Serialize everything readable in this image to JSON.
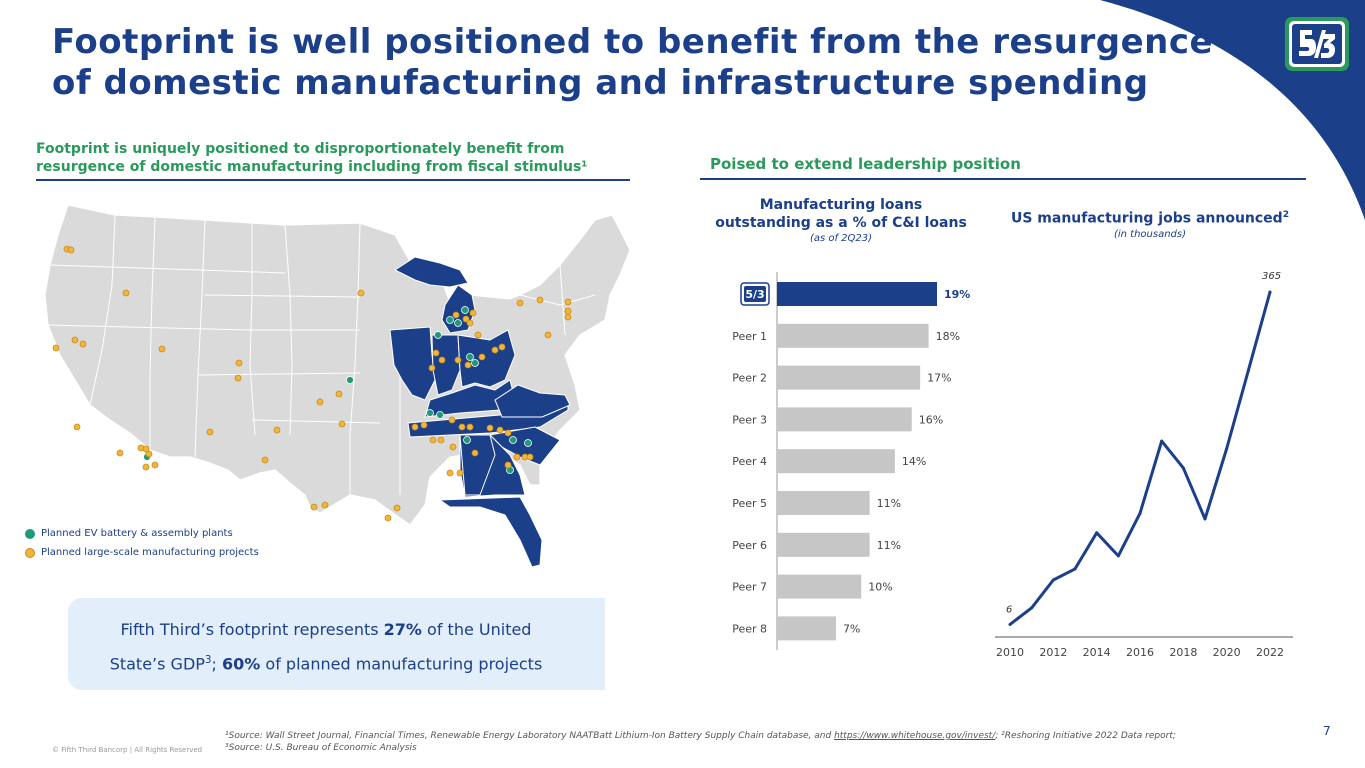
{
  "header": {
    "title_line1": "Footprint is well positioned to benefit from the resurgence",
    "title_line2": "of domestic manufacturing and infrastructure spending",
    "logo_alt": "Fifth Third Bank logo"
  },
  "left": {
    "heading_line1": "Footprint is uniquely positioned to disproportionately benefit from",
    "heading_line2": "resurgence of domestic manufacturing including from fiscal stimulus¹",
    "legend": {
      "ev": "Planned EV battery & assembly plants",
      "mfg": "Planned large-scale manufacturing projects"
    },
    "callout": {
      "line1_a": "Fifth Third’s footprint represents ",
      "line1_b": "27%",
      "line1_c": " of the United",
      "line2_a": "State’s GDP",
      "line2_sup": "3",
      "line2_b": "; ",
      "line2_c": "60%",
      "line2_d": " of planned manufacturing projects"
    }
  },
  "right": {
    "heading": "Poised to extend leadership position"
  },
  "colors": {
    "brand_blue": "#1c3f8a",
    "accent_green": "#2a9a5c",
    "ev_dot": "#1f9a78",
    "mfg_dot": "#f2b53b",
    "bar_gray": "#c6c6c6",
    "map_gray": "#dadada"
  },
  "chart_data": [
    {
      "type": "bar",
      "orientation": "horizontal",
      "title_line1": "Manufacturing loans",
      "title_line2": "outstanding as a % of C&I loans",
      "subtitle": "(as of 2Q23)",
      "categories": [
        "Fifth Third",
        "Peer 1",
        "Peer 2",
        "Peer 3",
        "Peer 4",
        "Peer 5",
        "Peer 6",
        "Peer 7",
        "Peer 8"
      ],
      "values": [
        19,
        18,
        17,
        16,
        14,
        11,
        11,
        10,
        7
      ],
      "labels": [
        "19%",
        "18%",
        "17%",
        "16%",
        "14%",
        "11%",
        "11%",
        "10%",
        "7%"
      ],
      "highlight_index": 0,
      "xlim": [
        0,
        19
      ]
    },
    {
      "type": "line",
      "title": "US manufacturing jobs announced",
      "title_sup": "2",
      "subtitle": "(in thousands)",
      "x": [
        2010,
        2011,
        2012,
        2013,
        2014,
        2015,
        2016,
        2017,
        2018,
        2019,
        2020,
        2021,
        2022
      ],
      "values": [
        6,
        24,
        54,
        66,
        105,
        80,
        126,
        204,
        175,
        120,
        196,
        280,
        365
      ],
      "first_label": "6",
      "last_label": "365",
      "xticks": [
        "2010",
        "2012",
        "2014",
        "2016",
        "2018",
        "2020",
        "2022"
      ],
      "ylim": [
        0,
        365
      ]
    }
  ],
  "footer": {
    "footnote_line1_a": "¹Source: Wall Street Journal, Financial Times, Renewable Energy Laboratory NAATBatt Lithium-Ion Battery Supply Chain database, and ",
    "footnote_link": "https://www.whitehouse.gov/invest/",
    "footnote_line1_b": "; ²Reshoring Initiative 2022 Data report;",
    "footnote_line2": "³Source: U.S. Bureau of Economic Analysis",
    "copyright": "© Fifth Third Bancorp | All Rights Reserved",
    "page_number": "7"
  }
}
